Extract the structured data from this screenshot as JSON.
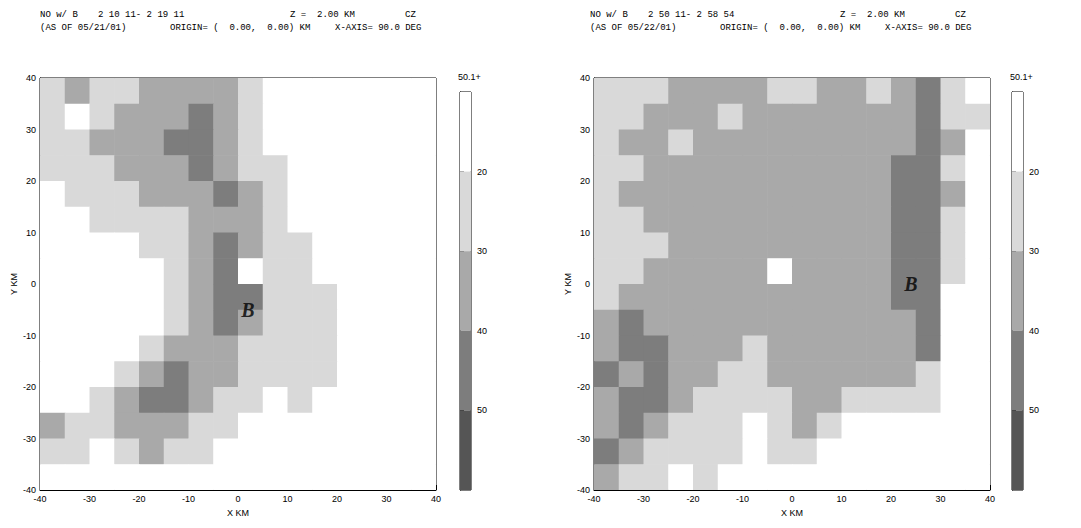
{
  "chart_data": [
    {
      "type": "heatmap",
      "header_line1": [
        "NO w/ B",
        "2 10 11- 2 19 11",
        "Z =  2.00 KM",
        "CZ"
      ],
      "header_line2": [
        "(AS OF 05/21/01)",
        "ORIGIN= (  0.00,  0.00) KM",
        "X-AXIS= 90.0 DEG"
      ],
      "xlabel": "X KM",
      "ylabel": "Y KM",
      "xlim": [
        -40,
        40
      ],
      "ylim": [
        -40,
        40
      ],
      "xticks": [
        -40,
        -30,
        -20,
        -10,
        0,
        10,
        20,
        30,
        40
      ],
      "yticks": [
        -40,
        -30,
        -20,
        -10,
        0,
        10,
        20,
        30,
        40
      ],
      "x": [
        -37.5,
        -32.5,
        -27.5,
        -22.5,
        -17.5,
        -12.5,
        -7.5,
        -2.5,
        2.5,
        7.5,
        12.5,
        17.5,
        22.5,
        27.5,
        32.5,
        37.5
      ],
      "y": [
        37.5,
        32.5,
        27.5,
        22.5,
        17.5,
        12.5,
        7.5,
        2.5,
        -2.5,
        -7.5,
        -12.5,
        -17.5,
        -22.5,
        -27.5,
        -32.5,
        -37.5
      ],
      "z": [
        [
          25,
          35,
          25,
          25,
          35,
          35,
          35,
          35,
          25,
          10,
          10,
          10,
          10,
          10,
          10,
          10
        ],
        [
          25,
          10,
          25,
          35,
          35,
          35,
          45,
          35,
          25,
          10,
          10,
          10,
          10,
          10,
          10,
          10
        ],
        [
          25,
          25,
          35,
          35,
          35,
          45,
          45,
          35,
          25,
          10,
          10,
          10,
          10,
          10,
          10,
          10
        ],
        [
          25,
          25,
          25,
          35,
          35,
          35,
          45,
          35,
          25,
          25,
          10,
          10,
          10,
          10,
          10,
          10
        ],
        [
          10,
          25,
          25,
          25,
          35,
          35,
          35,
          45,
          35,
          25,
          10,
          10,
          10,
          10,
          10,
          10
        ],
        [
          10,
          10,
          25,
          25,
          25,
          25,
          35,
          35,
          35,
          25,
          10,
          10,
          10,
          10,
          10,
          10
        ],
        [
          10,
          10,
          10,
          10,
          25,
          25,
          35,
          45,
          35,
          25,
          25,
          10,
          10,
          10,
          10,
          10
        ],
        [
          10,
          10,
          10,
          10,
          10,
          25,
          35,
          45,
          10,
          25,
          25,
          10,
          10,
          10,
          10,
          10
        ],
        [
          10,
          10,
          10,
          10,
          10,
          25,
          35,
          45,
          45,
          25,
          25,
          25,
          10,
          10,
          10,
          10
        ],
        [
          10,
          10,
          10,
          10,
          10,
          25,
          35,
          45,
          35,
          25,
          25,
          25,
          10,
          10,
          10,
          10
        ],
        [
          10,
          10,
          10,
          10,
          25,
          35,
          35,
          35,
          25,
          25,
          25,
          25,
          10,
          10,
          10,
          10
        ],
        [
          10,
          10,
          10,
          25,
          35,
          45,
          35,
          35,
          25,
          25,
          25,
          25,
          10,
          10,
          10,
          10
        ],
        [
          10,
          10,
          25,
          35,
          45,
          45,
          35,
          25,
          25,
          10,
          25,
          10,
          10,
          10,
          10,
          10
        ],
        [
          35,
          25,
          25,
          35,
          35,
          35,
          25,
          25,
          10,
          10,
          10,
          10,
          10,
          10,
          10,
          10
        ],
        [
          25,
          25,
          10,
          25,
          35,
          25,
          25,
          10,
          10,
          10,
          10,
          10,
          10,
          10,
          10,
          10
        ],
        [
          10,
          10,
          10,
          10,
          10,
          10,
          10,
          10,
          10,
          10,
          10,
          10,
          10,
          10,
          10,
          10
        ]
      ],
      "colorbar": {
        "range": [
          10,
          60
        ],
        "ticks": [
          20,
          30,
          40,
          50
        ],
        "label": "50.1+",
        "levels": [
          20,
          30,
          40,
          50
        ],
        "colors": [
          "#ffffff",
          "#d9d9d9",
          "#a9a9a9",
          "#7d7d7d",
          "#555555"
        ]
      },
      "annotations": [
        {
          "text": "B",
          "x": 2,
          "y": -5
        }
      ]
    },
    {
      "type": "heatmap",
      "header_line1": [
        "NO w/ B",
        "2 50 11- 2 58 54",
        "Z =  2.00 KM",
        "CZ"
      ],
      "header_line2": [
        "(AS OF 05/22/01)",
        "ORIGIN= (  0.00,  0.00) KM",
        "X-AXIS= 90.0 DEG"
      ],
      "xlabel": "X KM",
      "ylabel": "Y KM",
      "xlim": [
        -40,
        40
      ],
      "ylim": [
        -40,
        40
      ],
      "xticks": [
        -40,
        -30,
        -20,
        -10,
        0,
        10,
        20,
        30,
        40
      ],
      "yticks": [
        -40,
        -30,
        -20,
        -10,
        0,
        10,
        20,
        30,
        40
      ],
      "x": [
        -37.5,
        -32.5,
        -27.5,
        -22.5,
        -17.5,
        -12.5,
        -7.5,
        -2.5,
        2.5,
        7.5,
        12.5,
        17.5,
        22.5,
        27.5,
        32.5,
        37.5
      ],
      "y": [
        37.5,
        32.5,
        27.5,
        22.5,
        17.5,
        12.5,
        7.5,
        2.5,
        -2.5,
        -7.5,
        -12.5,
        -17.5,
        -22.5,
        -27.5,
        -32.5,
        -37.5
      ],
      "z": [
        [
          25,
          25,
          25,
          35,
          35,
          35,
          35,
          25,
          25,
          35,
          35,
          25,
          35,
          45,
          25,
          10
        ],
        [
          25,
          25,
          35,
          35,
          35,
          25,
          35,
          35,
          35,
          35,
          35,
          35,
          35,
          45,
          25,
          25
        ],
        [
          25,
          35,
          35,
          25,
          35,
          35,
          35,
          35,
          35,
          35,
          35,
          35,
          35,
          45,
          35,
          10
        ],
        [
          25,
          25,
          35,
          35,
          35,
          35,
          35,
          35,
          35,
          35,
          35,
          35,
          45,
          45,
          25,
          10
        ],
        [
          25,
          35,
          35,
          35,
          35,
          35,
          35,
          35,
          35,
          35,
          35,
          35,
          45,
          45,
          35,
          10
        ],
        [
          25,
          25,
          35,
          35,
          35,
          35,
          35,
          35,
          35,
          35,
          35,
          35,
          45,
          45,
          25,
          10
        ],
        [
          25,
          25,
          25,
          35,
          35,
          35,
          35,
          35,
          35,
          35,
          35,
          35,
          45,
          45,
          25,
          10
        ],
        [
          25,
          25,
          35,
          35,
          35,
          35,
          35,
          10,
          35,
          35,
          35,
          35,
          45,
          45,
          25,
          10
        ],
        [
          25,
          35,
          35,
          35,
          35,
          35,
          35,
          35,
          35,
          35,
          35,
          35,
          45,
          45,
          10,
          10
        ],
        [
          35,
          45,
          35,
          35,
          35,
          35,
          35,
          35,
          35,
          35,
          35,
          35,
          35,
          45,
          10,
          10
        ],
        [
          35,
          45,
          45,
          35,
          35,
          35,
          25,
          35,
          35,
          35,
          35,
          35,
          35,
          45,
          10,
          10
        ],
        [
          45,
          35,
          45,
          35,
          35,
          25,
          25,
          35,
          35,
          35,
          35,
          35,
          35,
          25,
          10,
          10
        ],
        [
          35,
          45,
          45,
          35,
          25,
          25,
          25,
          25,
          35,
          35,
          25,
          25,
          25,
          25,
          10,
          10
        ],
        [
          35,
          45,
          35,
          25,
          25,
          25,
          10,
          25,
          35,
          25,
          10,
          10,
          10,
          10,
          10,
          10
        ],
        [
          45,
          35,
          25,
          25,
          25,
          25,
          10,
          25,
          25,
          10,
          10,
          10,
          10,
          10,
          10,
          10
        ],
        [
          35,
          25,
          25,
          10,
          25,
          10,
          10,
          10,
          10,
          10,
          10,
          10,
          10,
          10,
          10,
          10
        ]
      ],
      "colorbar": {
        "range": [
          10,
          60
        ],
        "ticks": [
          20,
          30,
          40,
          50
        ],
        "label": "50.1+",
        "levels": [
          20,
          30,
          40,
          50
        ],
        "colors": [
          "#ffffff",
          "#d9d9d9",
          "#a9a9a9",
          "#7d7d7d",
          "#555555"
        ]
      },
      "annotations": [
        {
          "text": "B",
          "x": 24,
          "y": 0
        }
      ]
    }
  ]
}
